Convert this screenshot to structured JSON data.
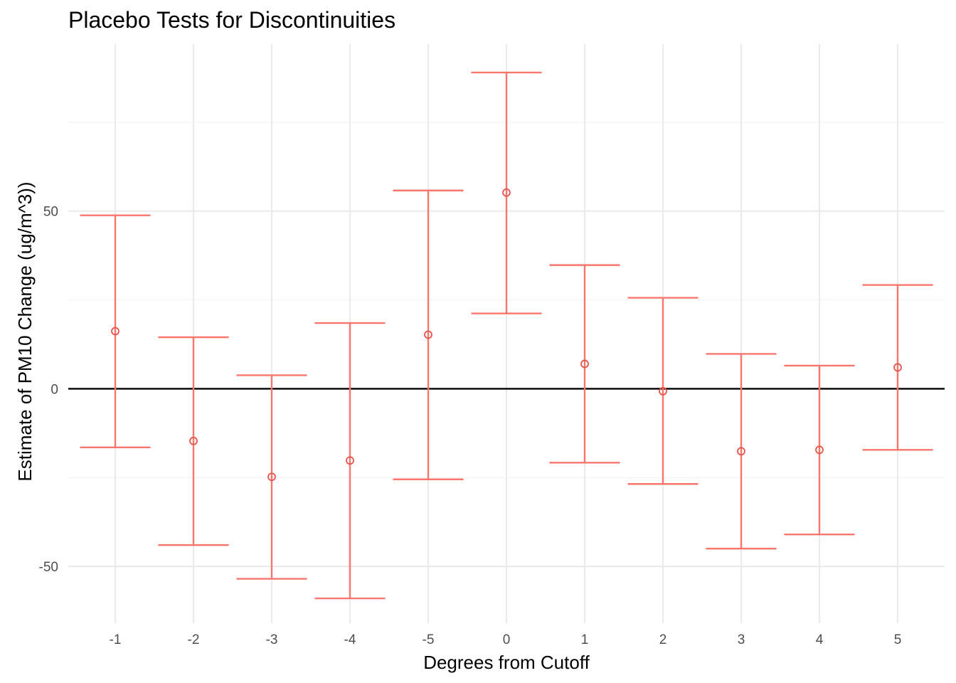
{
  "chart_data": {
    "type": "errorbar",
    "title": "Placebo Tests for Discontinuities",
    "xlabel": "Degrees from Cutoff",
    "ylabel": "Estimate of PM10 Change (ug/m^3))",
    "categories": [
      "-1",
      "-2",
      "-3",
      "-4",
      "-5",
      "0",
      "1",
      "2",
      "3",
      "4",
      "5"
    ],
    "estimate": [
      16.2,
      -14.7,
      -24.8,
      -20.2,
      15.2,
      55.2,
      7.0,
      -0.7,
      -17.6,
      -17.2,
      6.0
    ],
    "lower": [
      -16.5,
      -44.0,
      -53.5,
      -59.0,
      -25.5,
      21.2,
      -20.8,
      -26.8,
      -45.0,
      -41.0,
      -17.2
    ],
    "upper": [
      48.8,
      14.5,
      3.8,
      18.5,
      55.8,
      89.0,
      34.8,
      25.6,
      9.8,
      6.5,
      29.2
    ],
    "yticks": [
      -50,
      0,
      50
    ],
    "ytick_labels": [
      "-50",
      "0",
      "50"
    ],
    "ylim": [
      -66,
      97
    ],
    "hline": 0,
    "grid": true,
    "legend": "none",
    "color": "#f8766d"
  }
}
